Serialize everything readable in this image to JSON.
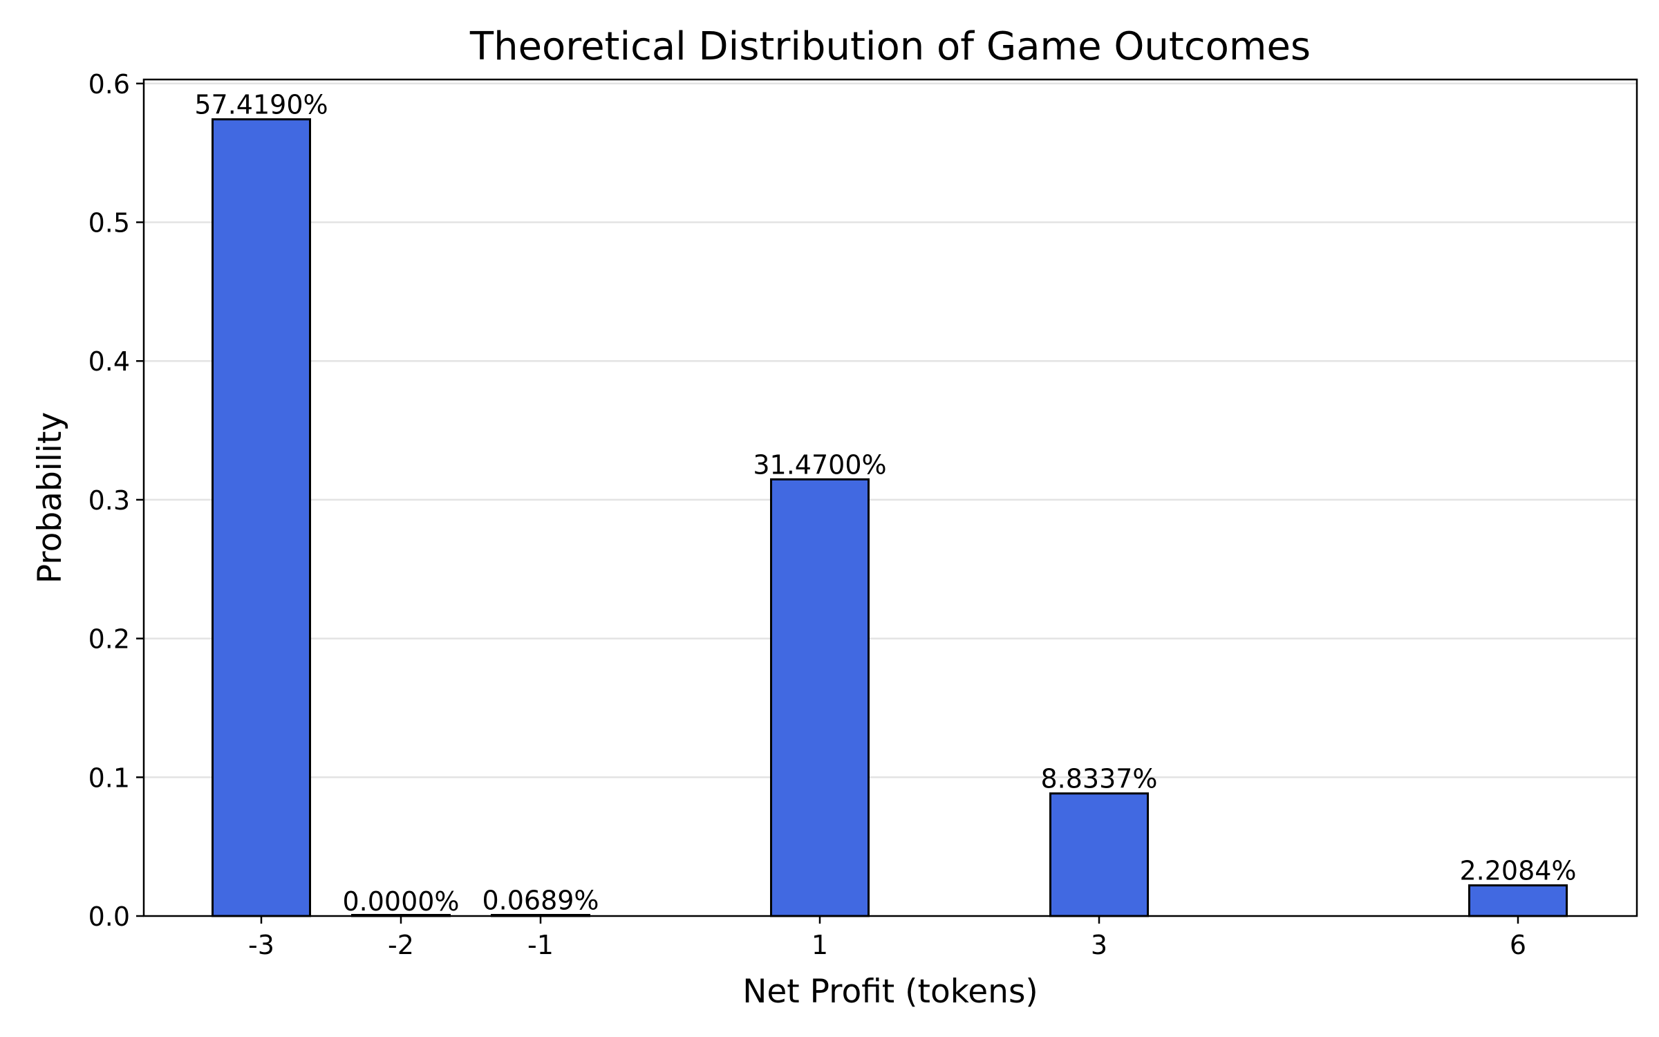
{
  "chart_data": {
    "type": "bar",
    "title": "Theoretical Distribution of Game Outcomes",
    "xlabel": "Net Profit (tokens)",
    "ylabel": "Probability",
    "x": [
      -3,
      -2,
      -1,
      1,
      3,
      6
    ],
    "categories": [
      "-3",
      "-2",
      "-1",
      "1",
      "3",
      "6"
    ],
    "values": [
      0.57419,
      0.0,
      0.000689,
      0.3147,
      0.088337,
      0.022084
    ],
    "value_labels": [
      "57.4190%",
      "0.0000%",
      "0.0689%",
      "31.4700%",
      "8.8337%",
      "2.2084%"
    ],
    "ylim": [
      0,
      0.6
    ],
    "yticks": [
      0.0,
      0.1,
      0.2,
      0.3,
      0.4,
      0.5,
      0.6
    ],
    "ytick_labels": [
      "0.0",
      "0.1",
      "0.2",
      "0.3",
      "0.4",
      "0.5",
      "0.6"
    ],
    "grid": "y-axis, light gray",
    "bar_color": "#4169E1",
    "bar_edge_color": "#000000",
    "grid_color": "#e3e3e3"
  }
}
